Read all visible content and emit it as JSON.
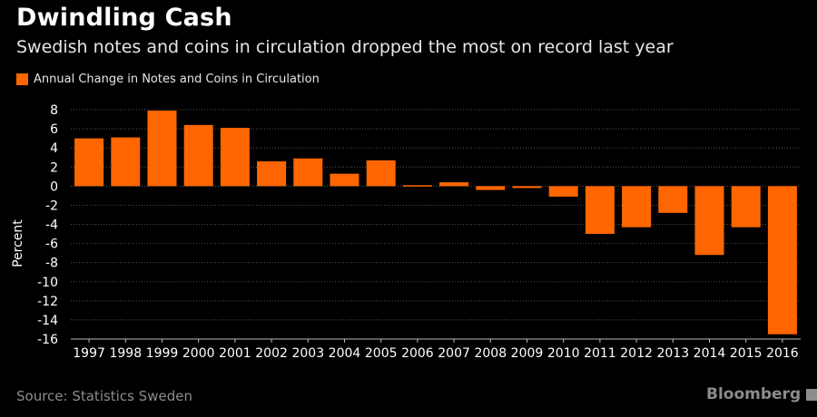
{
  "title": "Dwindling Cash",
  "subtitle": "Swedish notes and coins in circulation dropped the most on record last year",
  "source": "Source: Statistics Sweden",
  "logo_text": "Bloomberg",
  "chart_data": {
    "type": "bar",
    "title": "Dwindling Cash",
    "subtitle": "Swedish notes and coins in circulation dropped the most on record last year",
    "xlabel": "",
    "ylabel": "Percent",
    "ylim": [
      -16,
      8
    ],
    "yticks": [
      8,
      6,
      4,
      2,
      0,
      -2,
      -4,
      -6,
      -8,
      -10,
      -12,
      -14,
      -16
    ],
    "grid": true,
    "legend_position": "top-left",
    "categories": [
      "1997",
      "1998",
      "1999",
      "2000",
      "2001",
      "2002",
      "2003",
      "2004",
      "2005",
      "2006",
      "2007",
      "2008",
      "2009",
      "2010",
      "2011",
      "2012",
      "2013",
      "2014",
      "2015",
      "2016"
    ],
    "series": [
      {
        "name": "Annual Change in Notes and Coins in Circulation",
        "color": "#ff6600",
        "values": [
          5.0,
          5.1,
          7.9,
          6.4,
          6.1,
          2.6,
          2.9,
          1.3,
          2.7,
          0.1,
          0.4,
          -0.4,
          -0.2,
          -1.1,
          -5.0,
          -4.3,
          -2.8,
          -7.2,
          -4.3,
          -15.5
        ]
      }
    ]
  }
}
